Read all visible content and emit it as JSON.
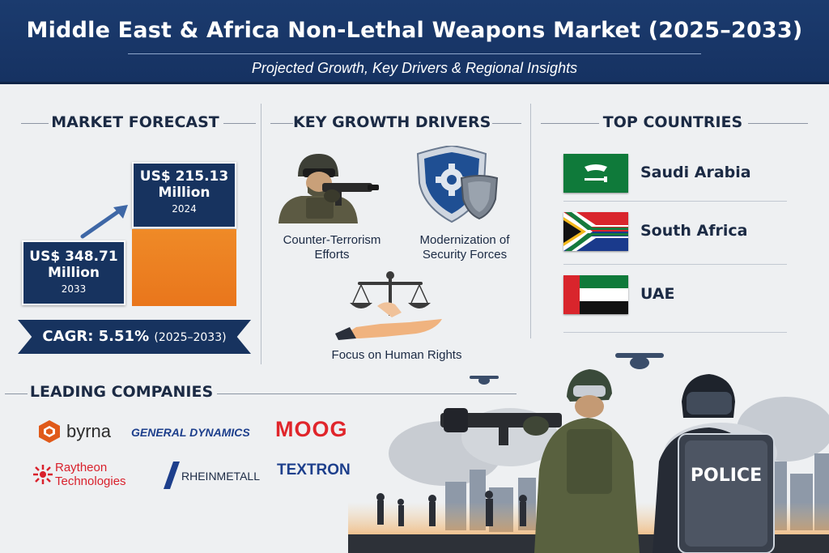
{
  "header": {
    "title": "Middle East & Africa Non-Lethal Weapons Market (2025–2033)",
    "subtitle": "Projected Growth, Key Drivers & Regional Insights"
  },
  "forecast": {
    "section_title": "MARKET FORECAST",
    "box_2024": {
      "amount": "US$ 215.13",
      "unit": "Million",
      "year": "2024"
    },
    "box_2033": {
      "amount": "US$ 348.71",
      "unit": "Million",
      "year": "2033"
    },
    "cagr_label": "CAGR: 5.51%",
    "cagr_range": "(2025–2033)"
  },
  "drivers": {
    "section_title": "KEY GROWTH DRIVERS",
    "items": [
      {
        "label_line1": "Counter-Terrorism",
        "label_line2": "Efforts",
        "icon": "soldier-icon"
      },
      {
        "label_line1": "Modernization of",
        "label_line2": "Security Forces",
        "icon": "shield-icon"
      },
      {
        "label_line1": "Focus on Human Rights",
        "label_line2": "",
        "icon": "scales-icon"
      }
    ]
  },
  "countries": {
    "section_title": "TOP COUNTRIES",
    "items": [
      {
        "name": "Saudi Arabia",
        "flag": "saudi-arabia-flag"
      },
      {
        "name": "South Africa",
        "flag": "south-africa-flag"
      },
      {
        "name": "UAE",
        "flag": "uae-flag"
      }
    ]
  },
  "companies": {
    "section_title": "LEADING COMPANIES",
    "items": [
      {
        "name": "byrna",
        "color": "#e05a1a"
      },
      {
        "name": "GENERAL DYNAMICS",
        "color": "#1d3f8c"
      },
      {
        "name": "MOOG",
        "color": "#e0252b"
      },
      {
        "name": "Raytheon",
        "name_line2": "Technologies",
        "color": "#d9212c"
      },
      {
        "name": "RHEINMETALL",
        "color": "#1b2a44"
      },
      {
        "name": "TEXTRON",
        "color": "#1d3f8c"
      }
    ]
  },
  "scene": {
    "shield_text": "POLICE"
  },
  "colors": {
    "navy": "#17335f",
    "orange": "#e9761c",
    "background": "#eef0f2"
  }
}
